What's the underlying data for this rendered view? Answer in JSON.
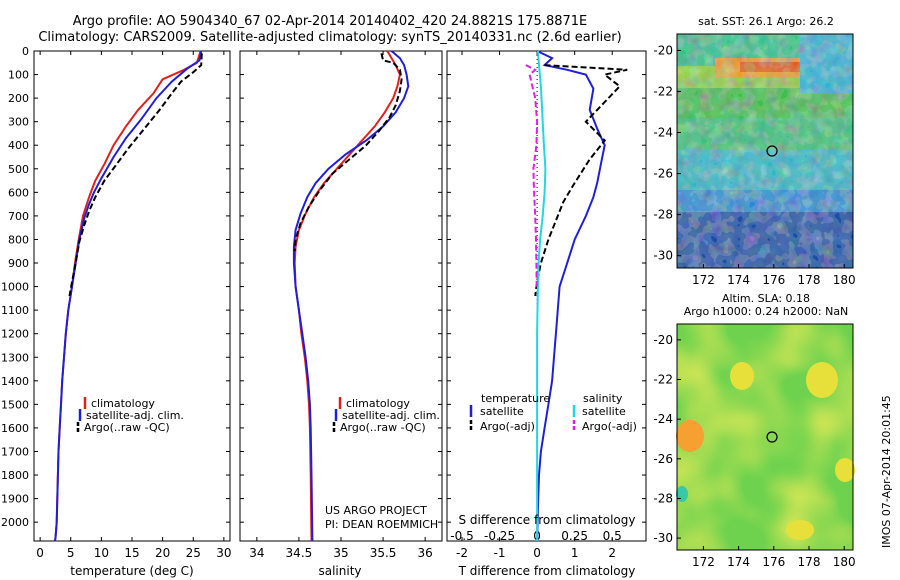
{
  "header": {
    "line1": "Argo profile: AO 5904340_67 02-Apr-2014 20140402_420 24.8821S 175.8871E",
    "line2": "Climatology: CARS2009. Satellite-adjusted climatology: synTS_20140331.nc (2.6d earlier)"
  },
  "credit": {
    "line1": "US ARGO PROJECT",
    "line2": "PI: DEAN ROEMMICH"
  },
  "stamp": "IMOS 07-Apr-2014 20:01:45",
  "colors": {
    "climatology": "#e02020",
    "satellite": "#1f1fd8",
    "argo": "#000000",
    "salinity_sat": "#22d8e0",
    "salinity_argo": "#e020e0"
  },
  "chart_data": [
    {
      "type": "line",
      "xlabel": "temperature (deg C)",
      "ylabel": "",
      "xlim": [
        -1,
        31
      ],
      "ylim": [
        2080,
        0
      ],
      "xticks": [
        0,
        5,
        10,
        15,
        20,
        25,
        30
      ],
      "yticks": [
        0,
        100,
        200,
        300,
        400,
        500,
        600,
        700,
        800,
        900,
        1000,
        1100,
        1200,
        1300,
        1400,
        1500,
        1600,
        1700,
        1800,
        1900,
        2000
      ],
      "legend": [
        "climatology",
        "satellite-adj. clim.",
        "Argo(..raw -QC)"
      ],
      "legend_loc": "lower-center",
      "series": [
        {
          "name": "climatology",
          "style": "solid",
          "x": [
            26.2,
            25.6,
            23.5,
            20,
            18.5,
            16,
            14,
            12,
            10.5,
            9,
            8,
            7,
            6.3,
            5.7,
            5.2,
            4.6,
            4.2,
            3.9,
            3.6,
            3.4,
            3.2,
            3,
            2.9,
            2.8,
            2.7,
            2.6,
            2.5,
            2.4
          ],
          "y": [
            0,
            50,
            80,
            120,
            180,
            250,
            320,
            400,
            480,
            550,
            620,
            700,
            800,
            900,
            1000,
            1100,
            1200,
            1300,
            1400,
            1500,
            1600,
            1700,
            1800,
            1900,
            2000,
            2040,
            2070,
            2080
          ]
        },
        {
          "name": "satellite-adj. clim.",
          "style": "solid",
          "x": [
            26.3,
            26,
            24,
            21.5,
            19,
            16.5,
            14,
            12,
            10,
            8.8,
            8,
            7.2,
            6.4,
            5.8,
            5.2,
            4.6,
            4.2,
            3.9,
            3.6,
            3.4,
            3.2,
            3,
            2.9,
            2.8,
            2.7,
            2.6,
            2.5,
            2.4
          ],
          "y": [
            0,
            40,
            75,
            130,
            200,
            290,
            370,
            450,
            540,
            600,
            650,
            710,
            800,
            900,
            1000,
            1100,
            1200,
            1300,
            1400,
            1500,
            1600,
            1700,
            1800,
            1900,
            2000,
            2040,
            2070,
            2080
          ]
        },
        {
          "name": "Argo(..raw -QC)",
          "style": "dashed",
          "x": [
            26.4,
            26.3,
            25,
            23,
            21.5,
            19.5,
            17,
            14.5,
            12.5,
            10.5,
            9,
            8,
            7.2,
            6.4,
            5.8,
            5.2,
            4.8
          ],
          "y": [
            10,
            60,
            90,
            130,
            180,
            250,
            330,
            410,
            480,
            550,
            620,
            680,
            740,
            810,
            900,
            980,
            1040
          ]
        }
      ]
    },
    {
      "type": "line",
      "xlabel": "salinity",
      "ylabel": "",
      "xlim": [
        33.8,
        36.2
      ],
      "ylim": [
        2080,
        0
      ],
      "xticks": [
        34,
        34.5,
        35,
        35.5,
        36
      ],
      "legend": [
        "climatology",
        "satellite-adj. clim.",
        "Argo(..raw -QC)"
      ],
      "legend_loc": "lower-center",
      "series": [
        {
          "name": "climatology",
          "style": "solid",
          "x": [
            35.55,
            35.6,
            35.65,
            35.7,
            35.67,
            35.62,
            35.52,
            35.4,
            35.25,
            35.1,
            34.95,
            34.8,
            34.68,
            34.58,
            34.5,
            34.46,
            34.45,
            34.46,
            34.5,
            34.53,
            34.57,
            34.6,
            34.62,
            34.63,
            34.64,
            34.65
          ],
          "y": [
            0,
            30,
            60,
            100,
            150,
            200,
            260,
            320,
            380,
            440,
            500,
            560,
            620,
            690,
            760,
            830,
            900,
            1000,
            1100,
            1200,
            1300,
            1400,
            1500,
            1600,
            1800,
            2080
          ]
        },
        {
          "name": "satellite-adj. clim.",
          "style": "solid",
          "x": [
            35.6,
            35.7,
            35.75,
            35.78,
            35.8,
            35.75,
            35.65,
            35.5,
            35.3,
            35.05,
            34.85,
            34.7,
            34.6,
            34.52,
            34.46,
            34.44,
            34.44,
            34.46,
            34.5,
            34.54,
            34.58,
            34.61,
            34.63,
            34.64,
            34.65,
            34.66
          ],
          "y": [
            0,
            30,
            60,
            100,
            150,
            200,
            260,
            320,
            380,
            440,
            500,
            560,
            620,
            690,
            760,
            830,
            900,
            1000,
            1100,
            1200,
            1300,
            1400,
            1500,
            1600,
            1800,
            2080
          ]
        },
        {
          "name": "Argo(..raw -QC)",
          "style": "dashed",
          "x": [
            35.48,
            35.5,
            35.62,
            35.7,
            35.72,
            35.7,
            35.65,
            35.58,
            35.45,
            35.3,
            35.1,
            34.9,
            34.75,
            34.62,
            34.52,
            34.46,
            34.45
          ],
          "y": [
            10,
            40,
            50,
            80,
            120,
            170,
            230,
            280,
            340,
            400,
            460,
            520,
            590,
            660,
            730,
            800,
            850
          ]
        }
      ]
    },
    {
      "type": "line",
      "xlabel": "T difference from climatology",
      "xlabel_top": "S difference from climatology",
      "xlim": [
        -2.4,
        2.9
      ],
      "ylim": [
        2080,
        0
      ],
      "xticks": [
        -2,
        -1,
        0,
        1,
        2
      ],
      "x2ticks": [
        -0.5,
        -0.25,
        0,
        0.25,
        0.5
      ],
      "x2tick_labels": [
        "-0.5",
        "-0.25",
        "0",
        "0.25",
        "0.5"
      ],
      "legend": [
        "temperature",
        "satellite",
        "Argo(-adj)",
        "salinity",
        "satellite",
        "Argo(-adj)"
      ],
      "legend_loc": "lower-center",
      "series": [
        {
          "name": "temperature satellite",
          "style": "solid",
          "color": "#1f1fd8",
          "x": [
            0,
            0.4,
            0.2,
            0.8,
            1.3,
            1.5,
            1.4,
            1.6,
            1.8,
            1.7,
            1.6,
            1.5,
            1.3,
            1.0,
            0.8,
            0.6,
            0.5,
            0.4,
            0.3,
            0.2,
            0.1,
            0.05,
            0.03,
            0
          ],
          "y": [
            0,
            30,
            60,
            80,
            100,
            160,
            250,
            330,
            400,
            480,
            560,
            620,
            700,
            800,
            900,
            1000,
            1200,
            1400,
            1500,
            1600,
            1700,
            1800,
            1900,
            2080
          ]
        },
        {
          "name": "temperature Argo(-adj)",
          "style": "dashed",
          "color": "#000000",
          "x": [
            0.2,
            2.4,
            1.8,
            2.2,
            1.9,
            1.6,
            1.3,
            1.8,
            1.4,
            1.0,
            0.7,
            0.5,
            0.3,
            0.1,
            0,
            -0.05
          ],
          "y": [
            60,
            80,
            100,
            150,
            200,
            250,
            300,
            380,
            460,
            560,
            640,
            720,
            800,
            900,
            980,
            1040
          ]
        },
        {
          "name": "salinity satellite",
          "style": "solid",
          "color": "#22d8e0",
          "x": [
            0.02,
            0.05,
            0.1,
            0.15,
            0.18,
            0.22,
            0.2,
            0.15,
            0.08,
            0.04,
            0.02,
            0,
            0,
            0,
            0
          ],
          "y": [
            0,
            60,
            150,
            300,
            400,
            500,
            600,
            700,
            800,
            900,
            1000,
            1200,
            1400,
            1700,
            2080
          ]
        },
        {
          "name": "salinity Argo(-adj)",
          "style": "dashed",
          "color": "#e020e0",
          "x": [
            -0.3,
            -0.05,
            -0.2,
            -0.05,
            0,
            -0.02,
            -0.1,
            -0.08,
            -0.05,
            -0.03,
            -0.02,
            -0.01
          ],
          "y": [
            60,
            80,
            100,
            200,
            300,
            400,
            500,
            600,
            700,
            800,
            900,
            1000
          ]
        }
      ]
    },
    {
      "type": "heatmap",
      "title": "sat. SST: 26.1 Argo: 26.2",
      "xlim": [
        170.5,
        180.5
      ],
      "ylim": [
        -30.6,
        -19.2
      ],
      "xticks": [
        172,
        174,
        176,
        178,
        180
      ],
      "yticks": [
        -20,
        -22,
        -24,
        -26,
        -28,
        -30
      ],
      "marker": {
        "x": 175.9,
        "y": -24.9
      }
    },
    {
      "type": "heatmap",
      "title": "Altim. SLA: 0.18",
      "subtitle": "Argo h1000: 0.24 h2000: NaN",
      "xlim": [
        170.5,
        180.5
      ],
      "ylim": [
        -30.6,
        -19.2
      ],
      "xticks": [
        172,
        174,
        176,
        178,
        180
      ],
      "yticks": [
        -20,
        -22,
        -24,
        -26,
        -28,
        -30
      ],
      "marker": {
        "x": 175.9,
        "y": -24.9
      }
    }
  ]
}
